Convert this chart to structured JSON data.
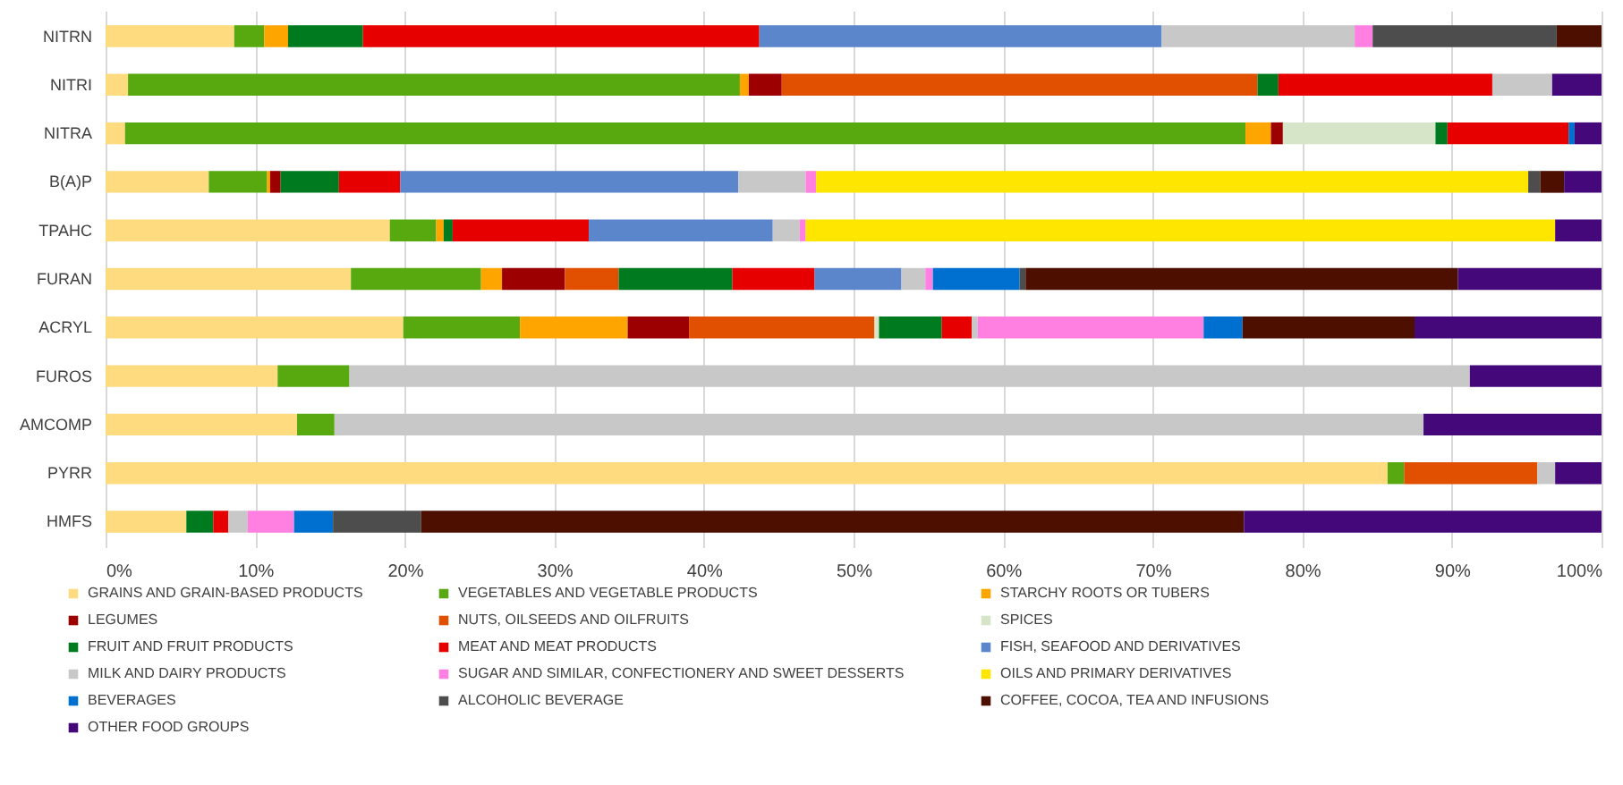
{
  "chart_data": {
    "type": "bar",
    "orientation": "horizontal",
    "stacked": true,
    "grid": "x",
    "legend": "bottom",
    "categories": [
      "NITRN",
      "NITRI",
      "NITRA",
      "B(A)P",
      "TPAHC",
      "FURAN",
      "ACRYL",
      "FUROS",
      "AMCOMP",
      "PYRR",
      "HMFS"
    ],
    "xlim": [
      0,
      100
    ],
    "xticks": [
      {
        "value": 0,
        "label": "0%"
      },
      {
        "value": 10,
        "label": "10%"
      },
      {
        "value": 20,
        "label": "20%"
      },
      {
        "value": 30,
        "label": "30%"
      },
      {
        "value": 40,
        "label": "40%"
      },
      {
        "value": 50,
        "label": "50%"
      },
      {
        "value": 60,
        "label": "60%"
      },
      {
        "value": 70,
        "label": "70%"
      },
      {
        "value": 80,
        "label": "80%"
      },
      {
        "value": 90,
        "label": "90%"
      },
      {
        "value": 100,
        "label": "100%"
      }
    ],
    "series": [
      {
        "name": "GRAINS AND GRAIN-BASED PRODUCTS",
        "color": "#ffdb80",
        "values": [
          8.6,
          1.5,
          1.3,
          6.9,
          19.0,
          16.4,
          19.9,
          11.5,
          12.8,
          85.7,
          5.4
        ]
      },
      {
        "name": "VEGETABLES AND VEGETABLE PRODUCTS",
        "color": "#58a910",
        "values": [
          2.0,
          40.9,
          74.9,
          3.9,
          3.1,
          8.7,
          7.8,
          4.8,
          2.5,
          1.1,
          null
        ]
      },
      {
        "name": "STARCHY ROOTS OR TUBERS",
        "color": "#ffa500",
        "values": [
          1.6,
          0.6,
          1.7,
          0.2,
          0.5,
          1.4,
          7.2,
          null,
          null,
          null,
          null
        ]
      },
      {
        "name": "LEGUMES",
        "color": "#9c0000",
        "values": [
          null,
          2.2,
          0.8,
          0.7,
          null,
          4.2,
          4.1,
          null,
          null,
          null,
          null
        ]
      },
      {
        "name": "NUTS, OILSEEDS AND OILFRUITS",
        "color": "#e05000",
        "values": [
          null,
          31.8,
          null,
          null,
          null,
          3.6,
          12.4,
          null,
          null,
          8.9,
          null
        ]
      },
      {
        "name": "SPICES",
        "color": "#d6e4c8",
        "values": [
          null,
          null,
          10.2,
          null,
          null,
          null,
          0.3,
          null,
          null,
          null,
          null
        ]
      },
      {
        "name": "FRUIT AND FRUIT PRODUCTS",
        "color": "#007a1f",
        "values": [
          5.0,
          1.4,
          0.8,
          3.9,
          0.6,
          7.6,
          4.2,
          null,
          null,
          null,
          1.8
        ]
      },
      {
        "name": "MEAT AND MEAT PRODUCTS",
        "color": "#e60000",
        "values": [
          26.5,
          14.3,
          8.1,
          4.1,
          9.1,
          5.5,
          2.0,
          null,
          null,
          null,
          1.0
        ]
      },
      {
        "name": "FISH, SEAFOOD AND DERIVATIVES",
        "color": "#5b86cc",
        "values": [
          26.9,
          null,
          null,
          22.6,
          12.3,
          5.8,
          null,
          null,
          null,
          null,
          null
        ]
      },
      {
        "name": "MILK AND DAIRY PRODUCTS",
        "color": "#c8c8c8",
        "values": [
          12.9,
          4.0,
          null,
          4.5,
          1.8,
          1.6,
          0.4,
          74.9,
          72.8,
          1.2,
          1.3
        ]
      },
      {
        "name": "SUGAR AND SIMILAR, CONFECTIONERY AND SWEET DESSERTS",
        "color": "#ff80e0",
        "values": [
          1.2,
          null,
          null,
          0.7,
          0.4,
          0.5,
          15.1,
          null,
          null,
          null,
          3.1
        ]
      },
      {
        "name": "OILS AND PRIMARY DERIVATIVES",
        "color": "#ffe600",
        "values": [
          null,
          null,
          null,
          47.6,
          50.1,
          null,
          null,
          null,
          null,
          null,
          null
        ]
      },
      {
        "name": "BEVERAGES",
        "color": "#0070d0",
        "values": [
          null,
          null,
          0.4,
          null,
          null,
          5.8,
          2.6,
          null,
          null,
          null,
          2.6
        ]
      },
      {
        "name": "ALCOHOLIC BEVERAGE",
        "color": "#4d4d4d",
        "values": [
          12.3,
          null,
          null,
          0.8,
          null,
          0.4,
          null,
          null,
          null,
          null,
          5.9
        ]
      },
      {
        "name": "COFFEE, COCOA, TEA AND INFUSIONS",
        "color": "#4d1000",
        "values": [
          3.0,
          null,
          null,
          1.6,
          null,
          28.9,
          11.5,
          null,
          null,
          null,
          55.0
        ]
      },
      {
        "name": "OTHER FOOD GROUPS",
        "color": "#45087a",
        "values": [
          null,
          3.3,
          1.8,
          2.5,
          3.1,
          9.6,
          12.5,
          8.8,
          11.9,
          3.1,
          23.9
        ]
      }
    ]
  }
}
